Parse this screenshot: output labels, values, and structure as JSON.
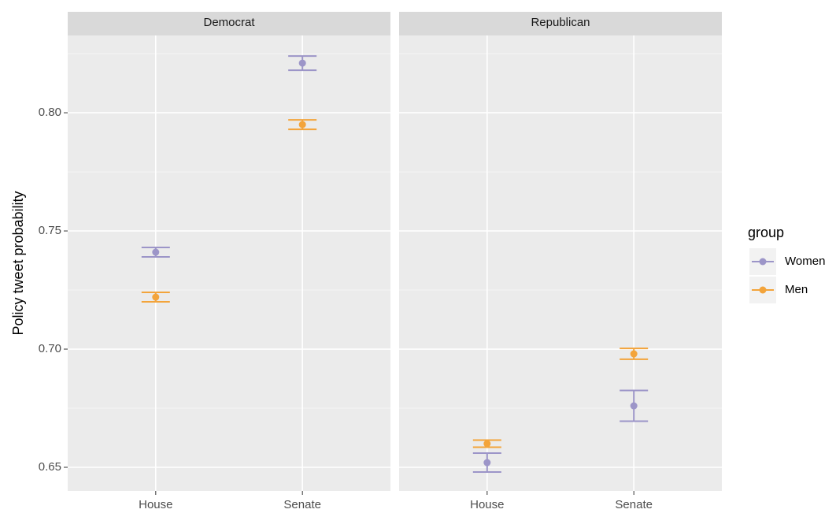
{
  "chart_data": [
    {
      "type": "errorbar",
      "title": "Democrat",
      "y_label": "Policy tweet probability",
      "legend_title": "group",
      "categories": [
        "House",
        "Senate"
      ],
      "series": [
        {
          "name": "Women",
          "color": "#9c95c8",
          "values": [
            0.741,
            0.821
          ],
          "errors": [
            0.002,
            0.003
          ]
        },
        {
          "name": "Men",
          "color": "#f3a43b",
          "values": [
            0.722,
            0.795
          ],
          "errors": [
            0.002,
            0.002
          ]
        }
      ],
      "ylim": [
        0.64,
        0.8327
      ],
      "yticks": [
        0.65,
        {
          "value": 0.75,
          "label": "0.75"
        },
        {
          "value": 0.7,
          "label": "0.70"
        },
        {
          "value": 0.8,
          "label": "0.80"
        }
      ],
      "grid": true
    },
    {
      "type": "errorbar",
      "title": "Republican",
      "categories": [
        "House",
        "Senate"
      ],
      "series": [
        {
          "name": "Women",
          "color": "#9c95c8",
          "values": [
            0.652,
            0.676
          ],
          "errors": [
            0.004,
            0.0065
          ]
        },
        {
          "name": "Men",
          "color": "#f3a43b",
          "values": [
            0.66,
            0.698
          ],
          "errors": [
            0.0015,
            0.0023
          ]
        }
      ],
      "ylim": [
        0.64,
        0.8327
      ],
      "yticks": [
        0.65,
        0.7,
        0.75,
        0.8
      ],
      "grid": true
    }
  ]
}
